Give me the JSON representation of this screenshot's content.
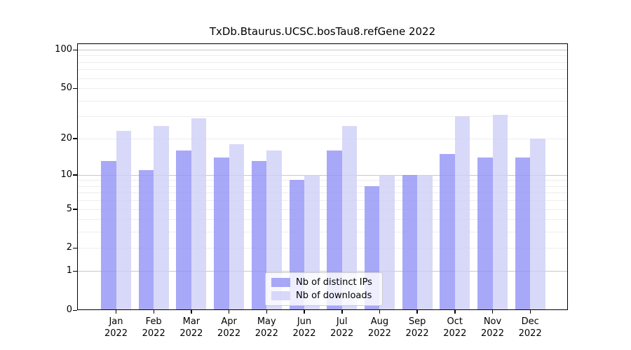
{
  "chart_data": {
    "type": "bar",
    "title": "TxDb.Btaurus.UCSC.bosTau8.refGene 2022",
    "categories": [
      "Jan",
      "Feb",
      "Mar",
      "Apr",
      "May",
      "Jun",
      "Jul",
      "Aug",
      "Sep",
      "Oct",
      "Nov",
      "Dec"
    ],
    "year_label": "2022",
    "series": [
      {
        "name": "Nb of distinct IPs",
        "color": "#9292f6",
        "fill_opacity": 0.8,
        "values": [
          13,
          11,
          16,
          14,
          13,
          9,
          16,
          8,
          10,
          15,
          14,
          14
        ]
      },
      {
        "name": "Nb of downloads",
        "color": "#cecef7",
        "fill_opacity": 0.8,
        "values": [
          23,
          25,
          29,
          18,
          16,
          10,
          25,
          10,
          10,
          30,
          31,
          20
        ]
      }
    ],
    "xlabel": "",
    "ylabel": "",
    "yscale": "log10(1+x)",
    "ylim": [
      0,
      113
    ],
    "yticks": [
      100,
      50,
      20,
      10,
      5,
      2,
      1,
      0
    ],
    "grid": {
      "show": true,
      "minor_color": "#ededed",
      "major_color": "#c9c9c9",
      "major_at": [
        1,
        10,
        100
      ]
    },
    "legend_position": "inside-bottom-center"
  }
}
